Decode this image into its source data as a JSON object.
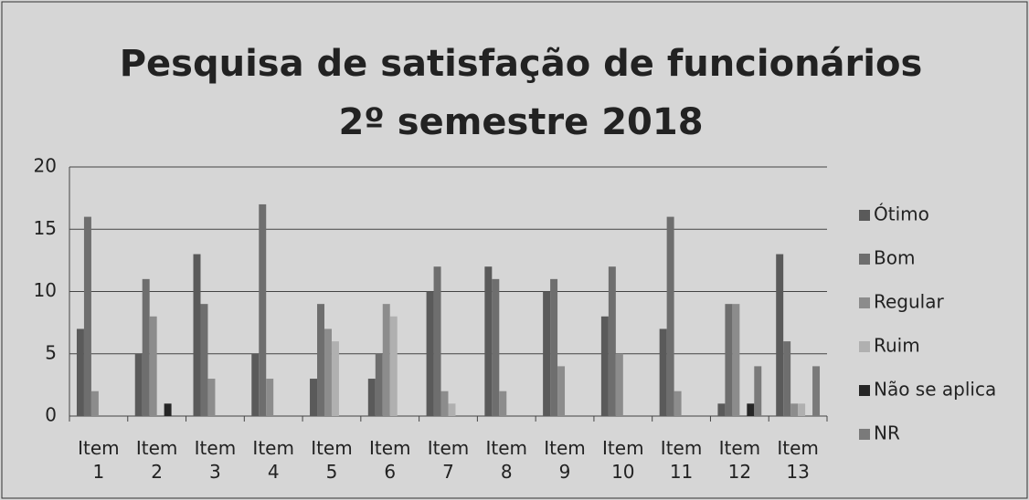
{
  "chart_data": {
    "type": "bar",
    "title": "Pesquisa de satisfação de funcionários 2º semestre 2018",
    "categories": [
      "Item 1",
      "Item 2",
      "Item 3",
      "Item 4",
      "Item 5",
      "Item 6",
      "Item 7",
      "Item 8",
      "Item 9",
      "Item 10",
      "Item 11",
      "Item 12",
      "Item 13"
    ],
    "series": [
      {
        "name": "Ótimo",
        "color": "#5a5a5a",
        "values": [
          7,
          5,
          13,
          5,
          3,
          3,
          10,
          12,
          10,
          8,
          7,
          1,
          13
        ]
      },
      {
        "name": "Bom",
        "color": "#6e6e6e",
        "values": [
          16,
          11,
          9,
          17,
          9,
          5,
          12,
          11,
          11,
          12,
          16,
          9,
          6
        ]
      },
      {
        "name": "Regular",
        "color": "#8c8c8c",
        "values": [
          2,
          8,
          3,
          3,
          7,
          9,
          2,
          2,
          4,
          5,
          2,
          9,
          1
        ]
      },
      {
        "name": "Ruim",
        "color": "#b0b0b0",
        "values": [
          0,
          0,
          0,
          0,
          6,
          8,
          1,
          0,
          0,
          0,
          0,
          0,
          1
        ]
      },
      {
        "name": "Não se aplica",
        "color": "#262626",
        "values": [
          0,
          1,
          0,
          0,
          0,
          0,
          0,
          0,
          0,
          0,
          0,
          1,
          0
        ]
      },
      {
        "name": "NR",
        "color": "#7a7a7a",
        "values": [
          0,
          0,
          0,
          0,
          0,
          0,
          0,
          0,
          0,
          0,
          0,
          4,
          4
        ]
      }
    ],
    "ylim": [
      0,
      20
    ],
    "yticks": [
      0,
      5,
      10,
      15,
      20
    ],
    "grid": true,
    "legend": "right"
  }
}
